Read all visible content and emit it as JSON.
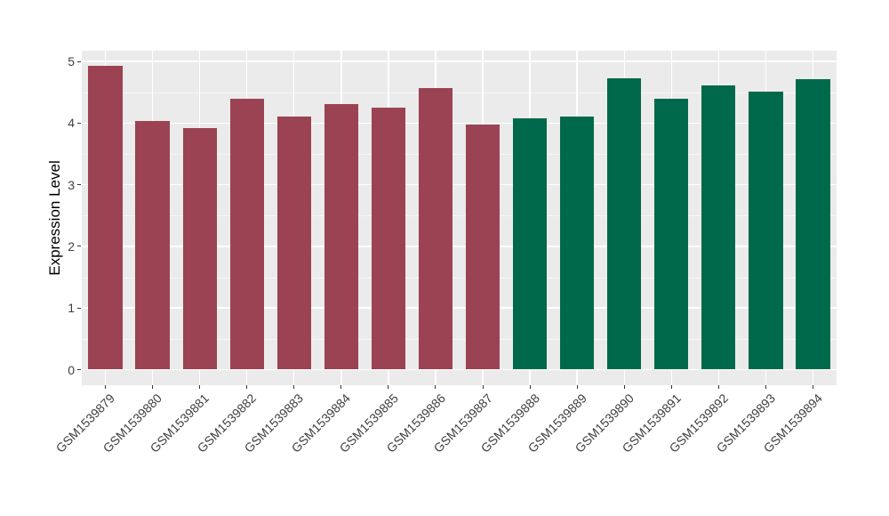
{
  "chart_data": {
    "type": "bar",
    "title": "",
    "xlabel": "",
    "ylabel": "Expression Level",
    "categories": [
      "GSM1539879",
      "GSM1539880",
      "GSM1539881",
      "GSM1539882",
      "GSM1539883",
      "GSM1539884",
      "GSM1539885",
      "GSM1539886",
      "GSM1539887",
      "GSM1539888",
      "GSM1539889",
      "GSM1539890",
      "GSM1539891",
      "GSM1539892",
      "GSM1539893",
      "GSM1539894"
    ],
    "values": [
      4.93,
      4.03,
      3.92,
      4.4,
      4.1,
      4.31,
      4.25,
      4.57,
      3.98,
      4.07,
      4.1,
      4.72,
      4.4,
      4.61,
      4.51,
      4.71
    ],
    "bar_colors": [
      "#9B4352",
      "#9B4352",
      "#9B4352",
      "#9B4352",
      "#9B4352",
      "#9B4352",
      "#9B4352",
      "#9B4352",
      "#9B4352",
      "#01694B",
      "#01694B",
      "#01694B",
      "#01694B",
      "#01694B",
      "#01694B",
      "#01694B"
    ],
    "groups": [
      {
        "name": "red-group",
        "color": "#9B4352",
        "categories_count": 9
      },
      {
        "name": "green-group",
        "color": "#01694B",
        "categories_count": 7
      }
    ],
    "yticks": [
      0,
      1,
      2,
      3,
      4,
      5
    ],
    "minor_yticks": [
      0.5,
      1.5,
      2.5,
      3.5,
      4.5
    ],
    "ylim": [
      0,
      5.18
    ],
    "grid": true,
    "legend": "none",
    "style": {
      "panel_background": "#EBEBEB",
      "major_gridline_color": "#FFFFFF",
      "minor_gridline_color": "#F5F5F5",
      "tick_mark_color": "#333333",
      "tick_label_color": "#404040",
      "axis_title_color": "#000000",
      "figure_background": "#FFFFFF"
    }
  }
}
